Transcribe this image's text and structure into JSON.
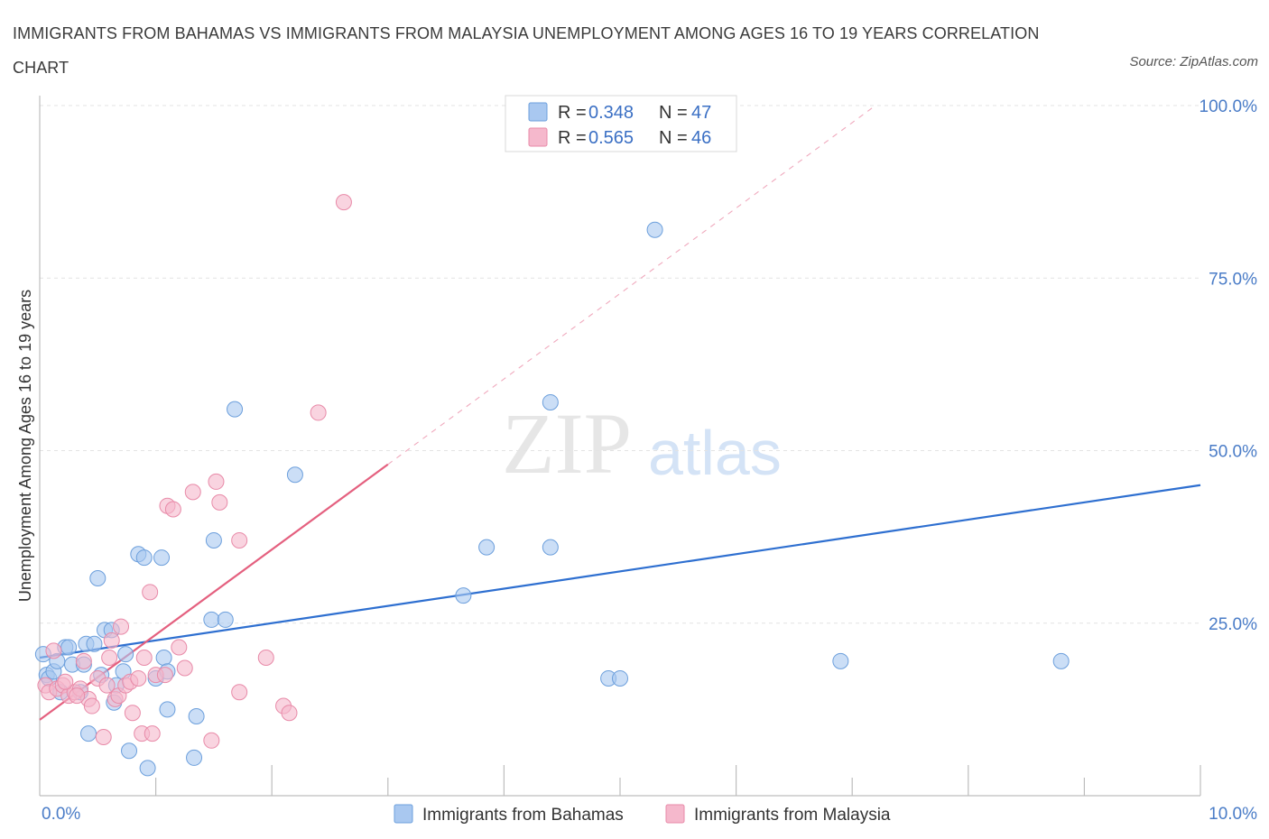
{
  "chart_data": {
    "type": "scatter",
    "title": "IMMIGRANTS FROM BAHAMAS VS IMMIGRANTS FROM MALAYSIA UNEMPLOYMENT AMONG AGES 16 TO 19 YEARS CORRELATION CHART",
    "source": "Source: ZipAtlas.com",
    "watermark": {
      "zip": "ZIP",
      "atlas": "atlas"
    },
    "ylabel": "Unemployment Among Ages 16 to 19 years",
    "xlim": [
      0,
      10
    ],
    "ylim": [
      0,
      100
    ],
    "x_tick_labels": {
      "left": "0.0%",
      "right": "10.0%"
    },
    "y_ticks": [
      {
        "value": 25,
        "label": "25.0%"
      },
      {
        "value": 50,
        "label": "50.0%"
      },
      {
        "value": 75,
        "label": "75.0%"
      },
      {
        "value": 100,
        "label": "100.0%"
      }
    ],
    "grid": true,
    "legend_top": [
      {
        "r_label": "R = ",
        "r_value": "0.348",
        "n_label": "N = ",
        "n_value": "47",
        "color": "#a9c8f0"
      },
      {
        "r_label": "R = ",
        "r_value": "0.565",
        "n_label": "N = ",
        "n_value": "46",
        "color": "#f5b8cc"
      }
    ],
    "series": [
      {
        "name": "Immigrants from Bahamas",
        "color": "#a9c8f0",
        "stroke": "#6c9fdc",
        "trend": {
          "x0": 0,
          "y0": 20.0,
          "x1": 10,
          "y1": 45.0,
          "color": "#2e6fd0"
        },
        "points": [
          [
            0.03,
            20.5
          ],
          [
            0.06,
            17.5
          ],
          [
            0.08,
            17.0
          ],
          [
            0.12,
            18.0
          ],
          [
            0.15,
            19.5
          ],
          [
            0.22,
            21.5
          ],
          [
            0.25,
            21.5
          ],
          [
            0.28,
            19.0
          ],
          [
            0.35,
            15.0
          ],
          [
            0.38,
            19.0
          ],
          [
            0.4,
            22.0
          ],
          [
            0.42,
            9.0
          ],
          [
            0.47,
            22.0
          ],
          [
            0.5,
            31.5
          ],
          [
            0.53,
            17.5
          ],
          [
            0.56,
            24.0
          ],
          [
            0.62,
            24.0
          ],
          [
            0.64,
            13.5
          ],
          [
            0.66,
            16.0
          ],
          [
            0.72,
            18.0
          ],
          [
            0.74,
            20.5
          ],
          [
            0.77,
            6.5
          ],
          [
            0.85,
            35.0
          ],
          [
            0.9,
            34.5
          ],
          [
            0.93,
            4.0
          ],
          [
            1.0,
            17.0
          ],
          [
            1.05,
            34.5
          ],
          [
            1.07,
            20.0
          ],
          [
            1.1,
            18.0
          ],
          [
            1.1,
            12.5
          ],
          [
            1.35,
            11.5
          ],
          [
            1.33,
            5.5
          ],
          [
            1.5,
            37.0
          ],
          [
            1.48,
            25.5
          ],
          [
            1.6,
            25.5
          ],
          [
            1.68,
            56.0
          ],
          [
            2.2,
            46.5
          ],
          [
            3.65,
            29.0
          ],
          [
            3.85,
            36.0
          ],
          [
            4.4,
            36.0
          ],
          [
            4.4,
            57.0
          ],
          [
            4.9,
            17.0
          ],
          [
            5.0,
            17.0
          ],
          [
            5.3,
            82.0
          ],
          [
            6.9,
            19.5
          ],
          [
            8.8,
            19.5
          ],
          [
            0.18,
            15.0
          ]
        ]
      },
      {
        "name": "Immigrants from Malaysia",
        "color": "#f5b8cc",
        "stroke": "#e88aa8",
        "trend": {
          "x0": 0,
          "y0": 11.0,
          "x1": 3.0,
          "y1": 48.0,
          "color": "#e4607f"
        },
        "trend_ext": {
          "x0": 3.0,
          "y0": 48.0,
          "x1": 7.2,
          "y1": 100.0
        },
        "points": [
          [
            0.05,
            16.0
          ],
          [
            0.08,
            15.0
          ],
          [
            0.12,
            21.0
          ],
          [
            0.15,
            15.5
          ],
          [
            0.2,
            16.0
          ],
          [
            0.25,
            14.5
          ],
          [
            0.3,
            15.0
          ],
          [
            0.35,
            15.5
          ],
          [
            0.38,
            19.5
          ],
          [
            0.42,
            14.0
          ],
          [
            0.45,
            13.0
          ],
          [
            0.5,
            17.0
          ],
          [
            0.55,
            8.5
          ],
          [
            0.58,
            16.0
          ],
          [
            0.6,
            20.0
          ],
          [
            0.62,
            22.5
          ],
          [
            0.65,
            14.0
          ],
          [
            0.68,
            14.5
          ],
          [
            0.7,
            24.5
          ],
          [
            0.74,
            16.0
          ],
          [
            0.78,
            16.5
          ],
          [
            0.8,
            12.0
          ],
          [
            0.85,
            17.0
          ],
          [
            0.88,
            9.0
          ],
          [
            0.9,
            20.0
          ],
          [
            0.95,
            29.5
          ],
          [
            0.97,
            9.0
          ],
          [
            1.0,
            17.5
          ],
          [
            1.08,
            17.5
          ],
          [
            1.1,
            42.0
          ],
          [
            1.15,
            41.5
          ],
          [
            1.2,
            21.5
          ],
          [
            1.25,
            18.5
          ],
          [
            1.32,
            44.0
          ],
          [
            1.48,
            8.0
          ],
          [
            1.52,
            45.5
          ],
          [
            1.55,
            42.5
          ],
          [
            1.72,
            37.0
          ],
          [
            1.72,
            15.0
          ],
          [
            1.95,
            20.0
          ],
          [
            2.1,
            13.0
          ],
          [
            2.15,
            12.0
          ],
          [
            2.4,
            55.5
          ],
          [
            2.62,
            86.0
          ],
          [
            0.22,
            16.5
          ],
          [
            0.32,
            14.5
          ]
        ]
      }
    ]
  }
}
